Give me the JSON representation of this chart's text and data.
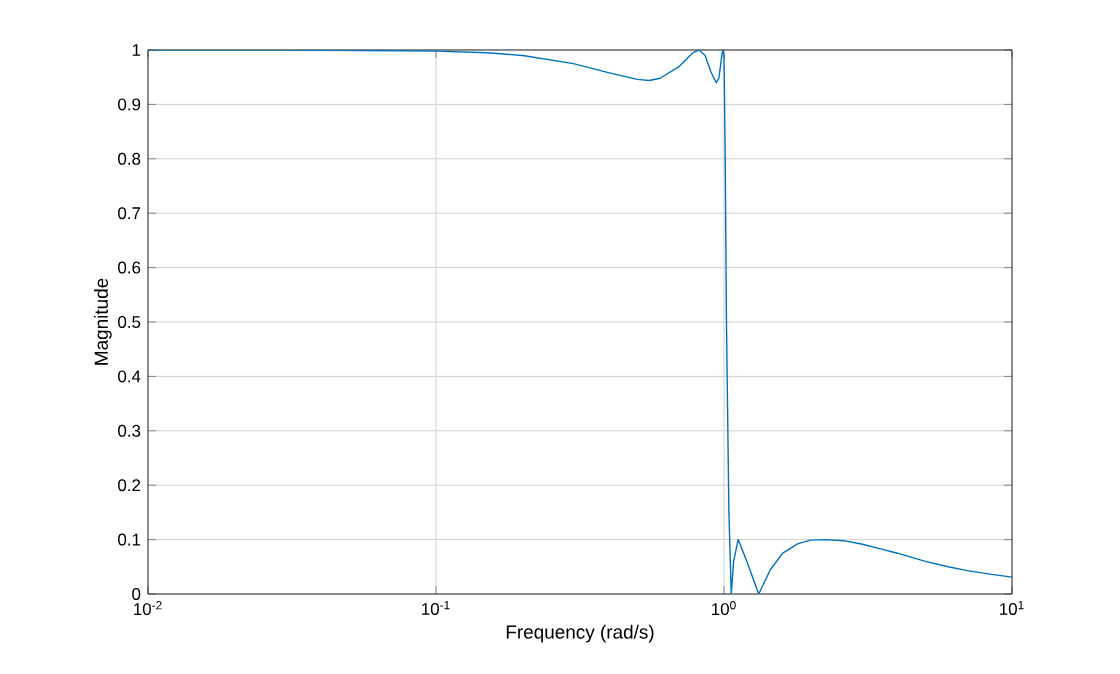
{
  "chart_data": {
    "type": "line",
    "xlabel": "Frequency (rad/s)",
    "ylabel": "Magnitude",
    "log": "x",
    "grid": true,
    "xlim": [
      0.01,
      10
    ],
    "xticks": [
      {
        "value": 0.01,
        "label": "10$^{-2}$"
      },
      {
        "value": 0.1,
        "label": "10$^{-1}$"
      },
      {
        "value": 1,
        "label": "10$^{0}$"
      },
      {
        "value": 10,
        "label": "10$^{1}$"
      }
    ],
    "ylim": [
      0,
      1
    ],
    "yticks": [
      0,
      0.1,
      0.2,
      0.3,
      0.4,
      0.5,
      0.6,
      0.7,
      0.8,
      0.9,
      1
    ],
    "series": [
      {
        "color": "#0072bd",
        "x": [
          0.01,
          0.03,
          0.1,
          0.15,
          0.2,
          0.3,
          0.4,
          0.5,
          0.55,
          0.6,
          0.7,
          0.78,
          0.82,
          0.86,
          0.9,
          0.94,
          0.96,
          0.98,
          0.99,
          1.0,
          1.01,
          1.02,
          1.04,
          1.06,
          1.08,
          1.12,
          1.2,
          1.32,
          1.45,
          1.6,
          1.8,
          2.0,
          2.26,
          2.6,
          3.0,
          3.5,
          4.0,
          5.0,
          6.0,
          7.0,
          8.5,
          10
        ],
        "values": [
          1,
          1,
          0.998,
          0.995,
          0.99,
          0.975,
          0.958,
          0.946,
          0.944,
          0.948,
          0.97,
          0.995,
          1.0,
          0.99,
          0.96,
          0.94,
          0.948,
          0.985,
          1.0,
          0.99,
          0.8,
          0.5,
          0.15,
          0.0,
          0.06,
          0.1,
          0.06,
          0.0,
          0.045,
          0.075,
          0.092,
          0.099,
          0.1,
          0.098,
          0.092,
          0.083,
          0.075,
          0.06,
          0.05,
          0.043,
          0.036,
          0.031
        ]
      }
    ]
  }
}
